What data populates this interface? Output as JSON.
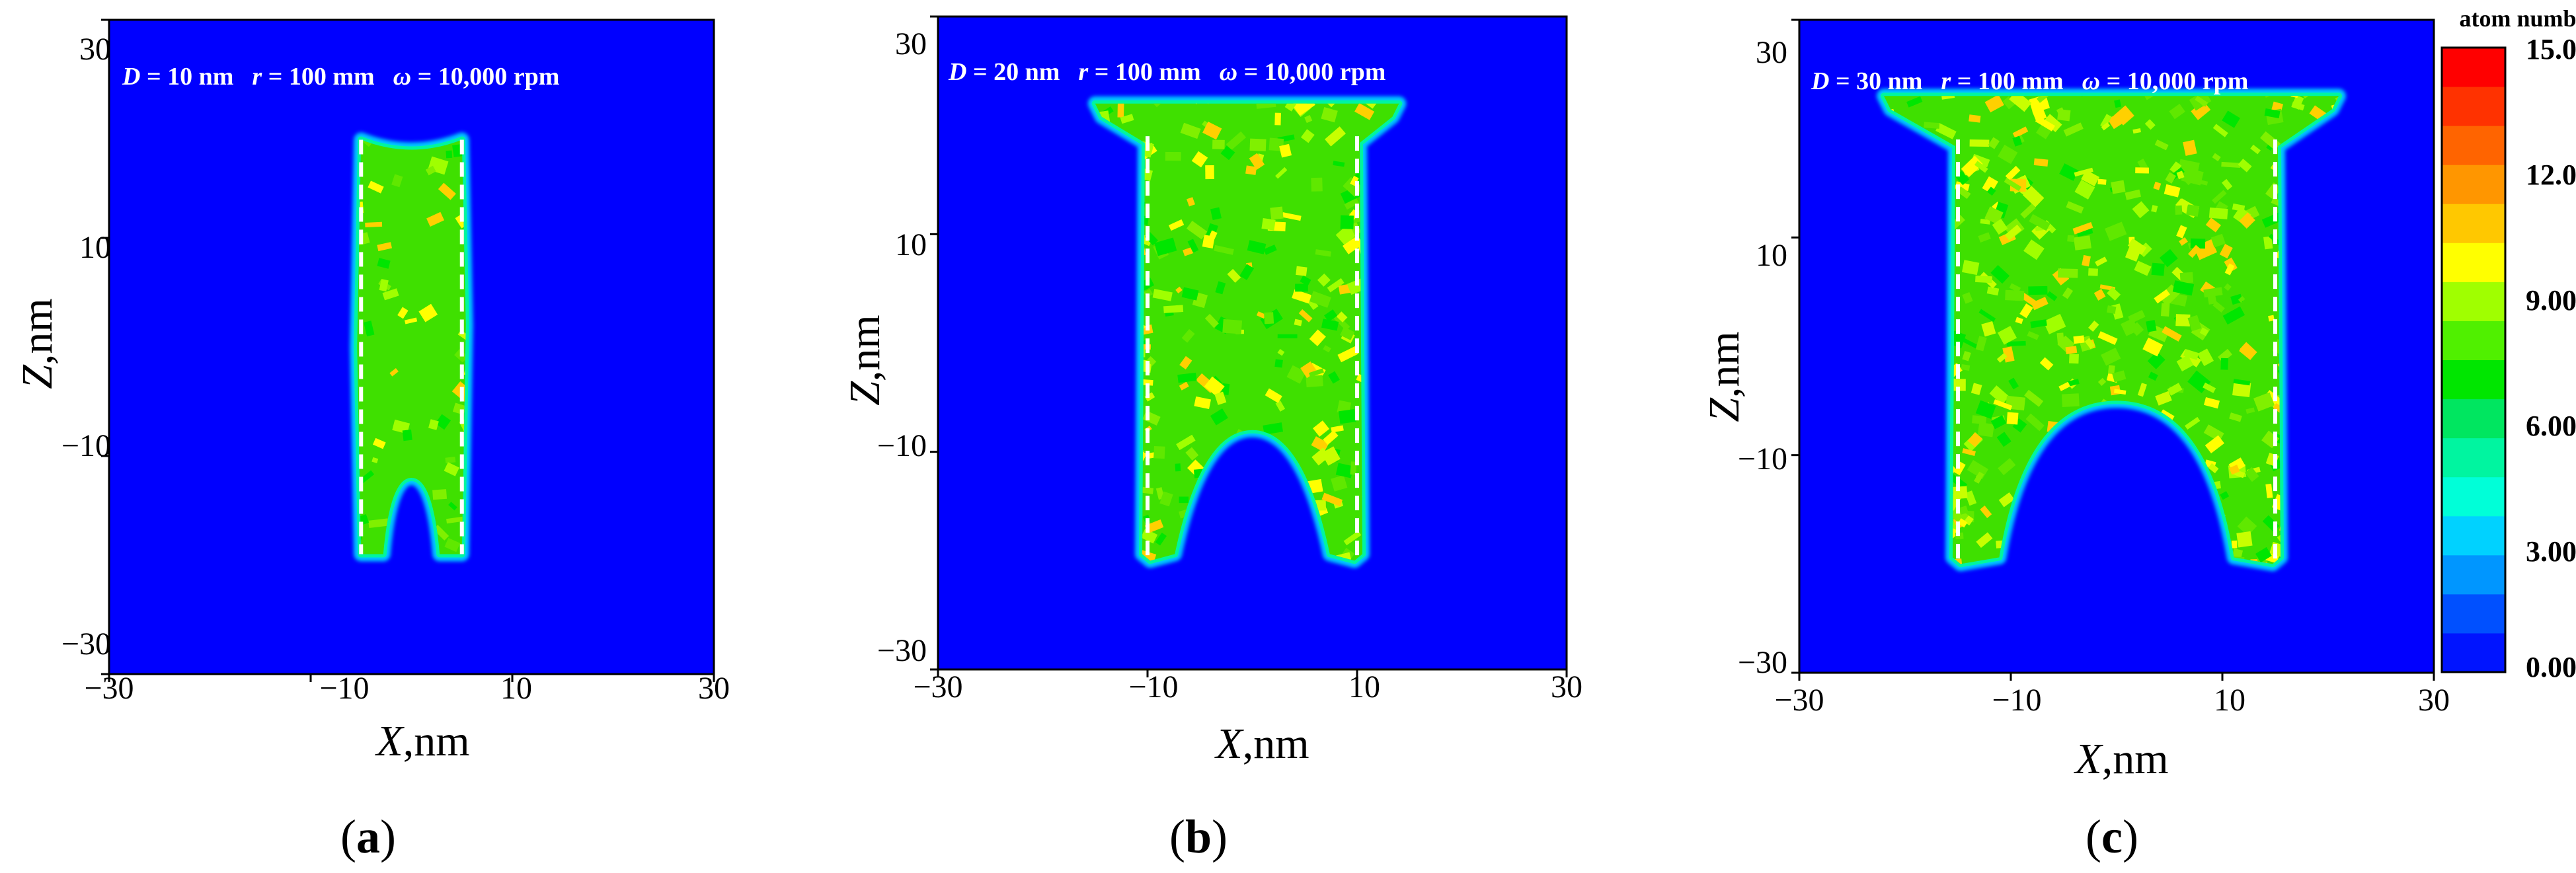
{
  "chart_data": [
    {
      "type": "heatmap",
      "panel": "a",
      "xlabel_symbol": "X",
      "xlabel_unit": ",nm",
      "ylabel_symbol": "Z",
      "ylabel_unit": ",nm",
      "xlim": [
        -30,
        30
      ],
      "ylim": [
        -30,
        30
      ],
      "xticks": [
        "−30",
        "−10",
        "10",
        "30"
      ],
      "yticks": [
        "30",
        "10",
        "−10",
        "−30"
      ],
      "annotation": {
        "D_sym": "D",
        "D_val": " = 10 nm",
        "r_sym": "r",
        "r_val": " = 100 mm",
        "w_sym": "ω",
        "w_val": " = 10,000 rpm"
      },
      "pillar_width_nm": 10,
      "pillar_top_nm": 19,
      "pillar_bottom_nm": -19,
      "arch_top_nm": -12,
      "shape": "pillar"
    },
    {
      "type": "heatmap",
      "panel": "b",
      "xlabel_symbol": "X",
      "xlabel_unit": ",nm",
      "ylabel_symbol": "Z",
      "ylabel_unit": ",nm",
      "xlim": [
        -30,
        30
      ],
      "ylim": [
        -30,
        30
      ],
      "xticks": [
        "−30",
        "−10",
        "10",
        "30"
      ],
      "yticks": [
        "30",
        "10",
        "−10",
        "−30"
      ],
      "annotation": {
        "D_sym": "D",
        "D_val": " = 20 nm",
        "r_sym": "r",
        "r_val": " = 100 mm",
        "w_sym": "ω",
        "w_val": " =  10,000 rpm"
      },
      "pillar_width_nm": 20,
      "pillar_top_nm": 19,
      "pillar_bottom_nm": -20,
      "arch_top_nm": -8,
      "shape": "arch-cap"
    },
    {
      "type": "heatmap",
      "panel": "c",
      "xlabel_symbol": "X",
      "xlabel_unit": ",nm",
      "ylabel_symbol": "Z",
      "ylabel_unit": ",nm",
      "xlim": [
        -30,
        30
      ],
      "ylim": [
        -30,
        30
      ],
      "xticks": [
        "−30",
        "−10",
        "10",
        "30"
      ],
      "yticks": [
        "30",
        "10",
        "−10",
        "−30"
      ],
      "annotation": {
        "D_sym": "D",
        "D_val": " = 30 nm",
        "r_sym": "r",
        "r_val": " = 100 mm",
        "w_sym": "ω",
        "w_val": " = 10,000 rpm"
      },
      "pillar_width_nm": 30,
      "pillar_top_nm": 19,
      "pillar_bottom_nm": -20,
      "arch_top_nm": -5,
      "shape": "arch-wide-cap"
    }
  ],
  "panel_labels": [
    {
      "open": "(",
      "letter": "a",
      "close": ")"
    },
    {
      "open": "(",
      "letter": "b",
      "close": ")"
    },
    {
      "open": "(",
      "letter": "c",
      "close": ")"
    }
  ],
  "colorbar": {
    "title": "atom number",
    "tick_labels": [
      "15.0",
      "12.0",
      "9.00",
      "6.00",
      "3.00",
      "0.00"
    ],
    "range": [
      0,
      15
    ],
    "colors": [
      "#0014ff",
      "#0050ff",
      "#0096ff",
      "#00d2ff",
      "#00ffd8",
      "#00f5a0",
      "#00e660",
      "#00e600",
      "#50f000",
      "#a0ff00",
      "#ffff00",
      "#ffc800",
      "#ff9600",
      "#ff6400",
      "#ff3200",
      "#ff0000"
    ]
  },
  "colors": {
    "background": "#0000ff",
    "dashed_line": "#ffffff"
  }
}
